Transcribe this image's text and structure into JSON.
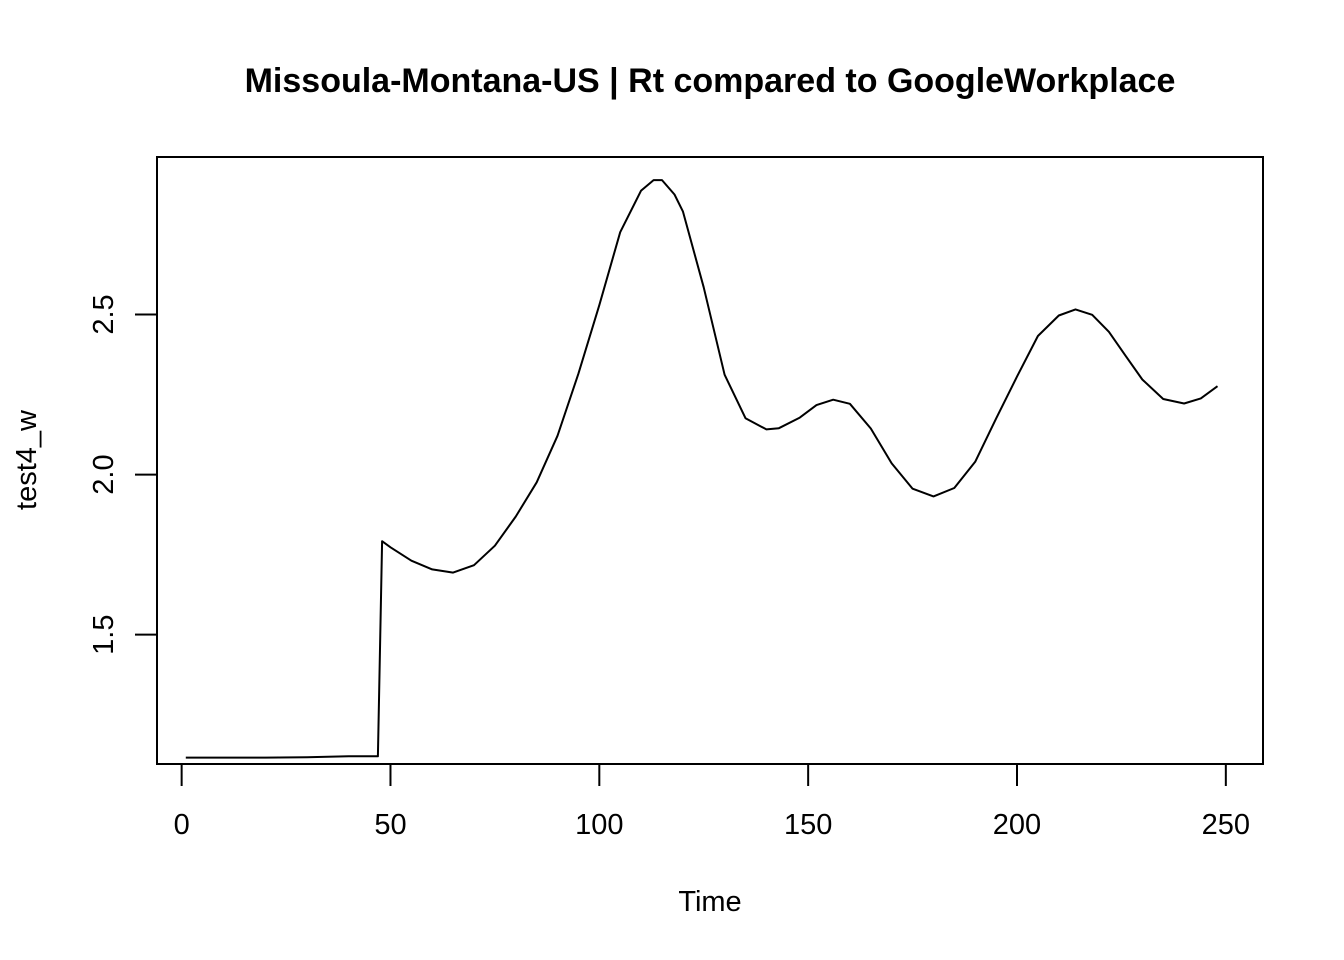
{
  "chart_data": {
    "type": "line",
    "title": "Missoula-Montana-US | Rt compared to GoogleWorkplace",
    "xlabel": "Time",
    "ylabel": "test4_w",
    "xlim": [
      -5.9,
      258.9
    ],
    "ylim": [
      1.096,
      2.992
    ],
    "x_ticks": [
      0,
      50,
      100,
      150,
      200,
      250
    ],
    "x_tick_labels": [
      "0",
      "50",
      "100",
      "150",
      "200",
      "250"
    ],
    "y_ticks": [
      1.5,
      2.0,
      2.5
    ],
    "y_tick_labels": [
      "1.5",
      "2.0",
      "2.5"
    ],
    "grid": false,
    "series": [
      {
        "color": "#000000",
        "x": [
          1,
          10,
          20,
          30,
          40,
          47,
          48,
          50,
          55,
          60,
          65,
          70,
          75,
          80,
          85,
          90,
          95,
          100,
          105,
          110,
          113,
          115,
          118,
          120,
          125,
          130,
          135,
          140,
          143,
          148,
          152,
          156,
          160,
          165,
          170,
          175,
          180,
          185,
          190,
          195,
          200,
          205,
          210,
          214,
          218,
          222,
          226,
          230,
          235,
          240,
          244,
          248
        ],
        "y": [
          1.116,
          1.116,
          1.116,
          1.117,
          1.12,
          1.12,
          1.792,
          1.773,
          1.731,
          1.704,
          1.694,
          1.717,
          1.778,
          1.869,
          1.976,
          2.121,
          2.315,
          2.529,
          2.757,
          2.887,
          2.92,
          2.92,
          2.875,
          2.822,
          2.585,
          2.312,
          2.176,
          2.141,
          2.145,
          2.178,
          2.217,
          2.234,
          2.221,
          2.144,
          2.035,
          1.956,
          1.932,
          1.958,
          2.04,
          2.175,
          2.306,
          2.433,
          2.497,
          2.516,
          2.499,
          2.446,
          2.371,
          2.297,
          2.236,
          2.222,
          2.238,
          2.276
        ]
      }
    ]
  }
}
